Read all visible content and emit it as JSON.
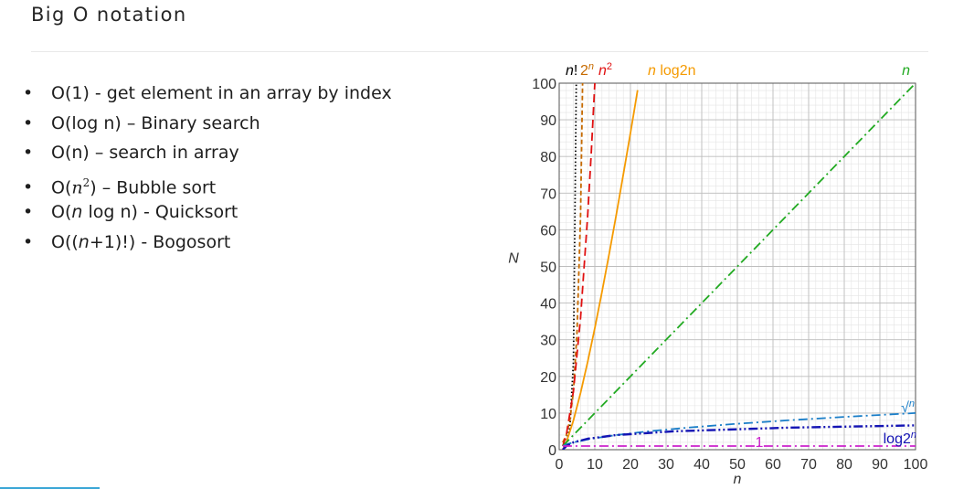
{
  "slide": {
    "title": "Big O notation",
    "bullets": [
      {
        "bullet": "•",
        "pre": "O(1) - get element in an array by index",
        "em": "",
        "post": "",
        "sup": ""
      },
      {
        "bullet": "•",
        "pre": "O(log n) – Binary search",
        "em": "",
        "post": "",
        "sup": ""
      },
      {
        "bullet": "•",
        "pre": "O(n) – search in array",
        "em": "",
        "post": "",
        "sup": ""
      },
      {
        "bullet": "•",
        "pre": "O(",
        "em": "n",
        "post": ") – Bubble sort",
        "sup": "2"
      },
      {
        "bullet": "•",
        "pre": "O(",
        "em": "n",
        "post": " log n) - Quicksort",
        "sup": ""
      },
      {
        "bullet": "•",
        "pre": "O((",
        "em": "n",
        "post": "+1)!) - Bogosort",
        "sup": ""
      }
    ]
  },
  "chart_data": {
    "type": "line",
    "title": "",
    "xlabel": "n",
    "ylabel": "N",
    "xlim": [
      0,
      100
    ],
    "ylim": [
      0,
      100
    ],
    "xticks": [
      0,
      10,
      20,
      30,
      40,
      50,
      60,
      70,
      80,
      90,
      100
    ],
    "yticks": [
      0,
      10,
      20,
      30,
      40,
      50,
      60,
      70,
      80,
      90,
      100
    ],
    "grid": true,
    "series": [
      {
        "name": "n!",
        "color": "#000000",
        "dash": "dot",
        "x": [
          1,
          2,
          3,
          4,
          5
        ],
        "y": [
          1,
          2,
          6,
          24,
          120
        ]
      },
      {
        "name": "2ⁿ",
        "color": "#c66a00",
        "dash": "dash-short",
        "x": [
          1,
          2,
          3,
          4,
          5,
          6,
          7
        ],
        "y": [
          2,
          4,
          8,
          16,
          32,
          64,
          128
        ]
      },
      {
        "name": "n²",
        "color": "#e01010",
        "dash": "dash",
        "x": [
          1,
          2,
          4,
          6,
          8,
          9,
          10,
          11
        ],
        "y": [
          1,
          4,
          16,
          36,
          64,
          81,
          100,
          121
        ]
      },
      {
        "name": "n log₂n",
        "color": "#f59a00",
        "dash": "solid",
        "x": [
          1,
          2,
          4,
          6,
          8,
          10,
          12,
          14,
          16,
          18,
          20,
          21,
          22
        ],
        "y": [
          0,
          2,
          8,
          15.5,
          24,
          33.2,
          43,
          53.3,
          64,
          75.1,
          86.4,
          92.2,
          98.1
        ]
      },
      {
        "name": "n",
        "color": "#22aa22",
        "dash": "dashdot",
        "x": [
          1,
          100
        ],
        "y": [
          1,
          100
        ]
      },
      {
        "name": "√n",
        "color": "#1a7ec8",
        "dash": "dashdot",
        "x": [
          1,
          2,
          4,
          9,
          16,
          25,
          36,
          49,
          64,
          81,
          100
        ],
        "y": [
          1,
          1.41,
          2,
          3,
          4,
          5,
          6,
          7,
          8,
          9,
          10
        ]
      },
      {
        "name": "log₂n",
        "color": "#1414b4",
        "dash": "dashdotdot",
        "x": [
          1,
          2,
          4,
          8,
          16,
          32,
          64,
          100
        ],
        "y": [
          0,
          1,
          2,
          3,
          4,
          5,
          6,
          6.64
        ]
      },
      {
        "name": "1",
        "color": "#cc22cc",
        "dash": "dashdot",
        "x": [
          1,
          100
        ],
        "y": [
          1,
          1
        ]
      }
    ],
    "labels": [
      {
        "text": "n",
        "suffix": "!",
        "color": "#000000"
      },
      {
        "text": "2",
        "suffix": "n",
        "color": "#c66a00"
      },
      {
        "text": "n",
        "suffix": "2",
        "color": "#e01010"
      },
      {
        "text": "n",
        "suffix": " log2n",
        "color": "#f59a00"
      },
      {
        "text": "n",
        "suffix": "",
        "color": "#22aa22"
      },
      {
        "text": "√",
        "suffix": "n",
        "color": "#1a7ec8"
      },
      {
        "text": "log2",
        "suffix": "n",
        "color": "#1414b4"
      },
      {
        "text": "1",
        "suffix": "",
        "color": "#cc22cc"
      }
    ]
  }
}
